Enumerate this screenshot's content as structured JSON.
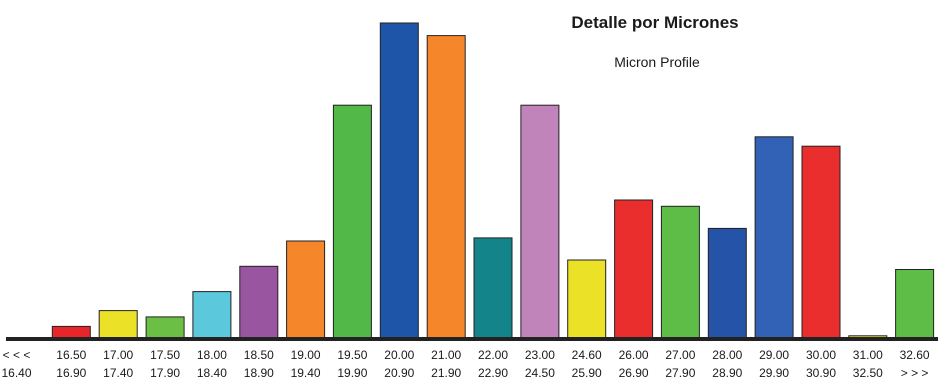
{
  "chart_data": {
    "type": "bar",
    "title": "Detalle por Micrones",
    "subtitle": "Micron Profile",
    "xlabel": "",
    "ylabel": "",
    "grid": false,
    "legend": "none",
    "categories_top": [
      "< < <",
      "16.50",
      "17.00",
      "17.50",
      "18.00",
      "18.50",
      "19.00",
      "19.50",
      "20.00",
      "21.00",
      "22.00",
      "23.00",
      "24.60",
      "26.00",
      "27.00",
      "28.00",
      "29.00",
      "30.00",
      "31.00",
      "32.60"
    ],
    "categories_bottom": [
      "16.40",
      "16.90",
      "17.40",
      "17.90",
      "18.40",
      "18.90",
      "19.40",
      "19.90",
      "20.90",
      "21.90",
      "22.90",
      "24.50",
      "25.90",
      "26.90",
      "27.90",
      "28.90",
      "29.90",
      "30.90",
      "32.50",
      "> > >"
    ],
    "values": [
      0,
      4,
      9,
      7,
      15,
      23,
      31,
      74,
      100,
      96,
      32,
      74,
      25,
      44,
      42,
      35,
      64,
      61,
      1,
      22
    ],
    "ylim": [
      0,
      100
    ],
    "colors": [
      "#ffffff",
      "#e8262a",
      "#ebe228",
      "#6bbf44",
      "#5bc8dc",
      "#9a55a0",
      "#f5862a",
      "#52b848",
      "#1f55a8",
      "#f5862a",
      "#13858a",
      "#c083ba",
      "#ebe228",
      "#ea2d2d",
      "#5ebd46",
      "#2553a8",
      "#3262b5",
      "#ea2d2d",
      "#ebe228",
      "#5ebd46"
    ]
  }
}
